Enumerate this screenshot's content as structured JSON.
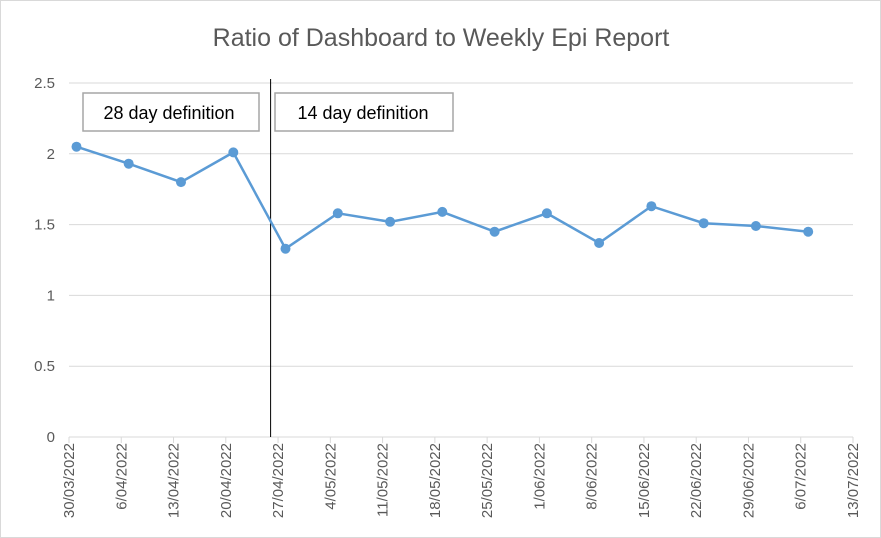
{
  "chart_data": {
    "type": "line",
    "title": "Ratio of Dashboard to Weekly Epi Report",
    "xlabel": "",
    "ylabel": "",
    "ylim": [
      0,
      2.5
    ],
    "yticks": [
      "0",
      "0.5",
      "1",
      "1.5",
      "2",
      "2.5"
    ],
    "x_dates": [
      "30/03/2022",
      "6/04/2022",
      "13/04/2022",
      "20/04/2022",
      "27/04/2022",
      "4/05/2022",
      "11/05/2022",
      "18/05/2022",
      "25/05/2022",
      "1/06/2022",
      "8/06/2022",
      "15/06/2022",
      "22/06/2022",
      "29/06/2022",
      "6/07/2022",
      "13/07/2022"
    ],
    "series": [
      {
        "points": [
          {
            "x": "31/03/2022",
            "y": 2.05
          },
          {
            "x": "7/04/2022",
            "y": 1.93
          },
          {
            "x": "14/04/2022",
            "y": 1.8
          },
          {
            "x": "21/04/2022",
            "y": 2.01
          },
          {
            "x": "28/04/2022",
            "y": 1.33
          },
          {
            "x": "5/05/2022",
            "y": 1.58
          },
          {
            "x": "12/05/2022",
            "y": 1.52
          },
          {
            "x": "19/05/2022",
            "y": 1.59
          },
          {
            "x": "26/05/2022",
            "y": 1.45
          },
          {
            "x": "2/06/2022",
            "y": 1.58
          },
          {
            "x": "9/06/2022",
            "y": 1.37
          },
          {
            "x": "16/06/2022",
            "y": 1.63
          },
          {
            "x": "23/06/2022",
            "y": 1.51
          },
          {
            "x": "30/06/2022",
            "y": 1.49
          },
          {
            "x": "7/07/2022",
            "y": 1.45
          }
        ]
      }
    ],
    "annotations": [
      {
        "text": "28 day definition"
      },
      {
        "text": "14 day definition"
      }
    ],
    "vertical_line_date": "26/04/2022",
    "grid": true,
    "legend": "none",
    "colors": {
      "series": "#5B9BD5",
      "grid": "#d9d9d9",
      "text": "#595959",
      "divider": "#000000",
      "box_border": "#a6a6a6"
    }
  }
}
